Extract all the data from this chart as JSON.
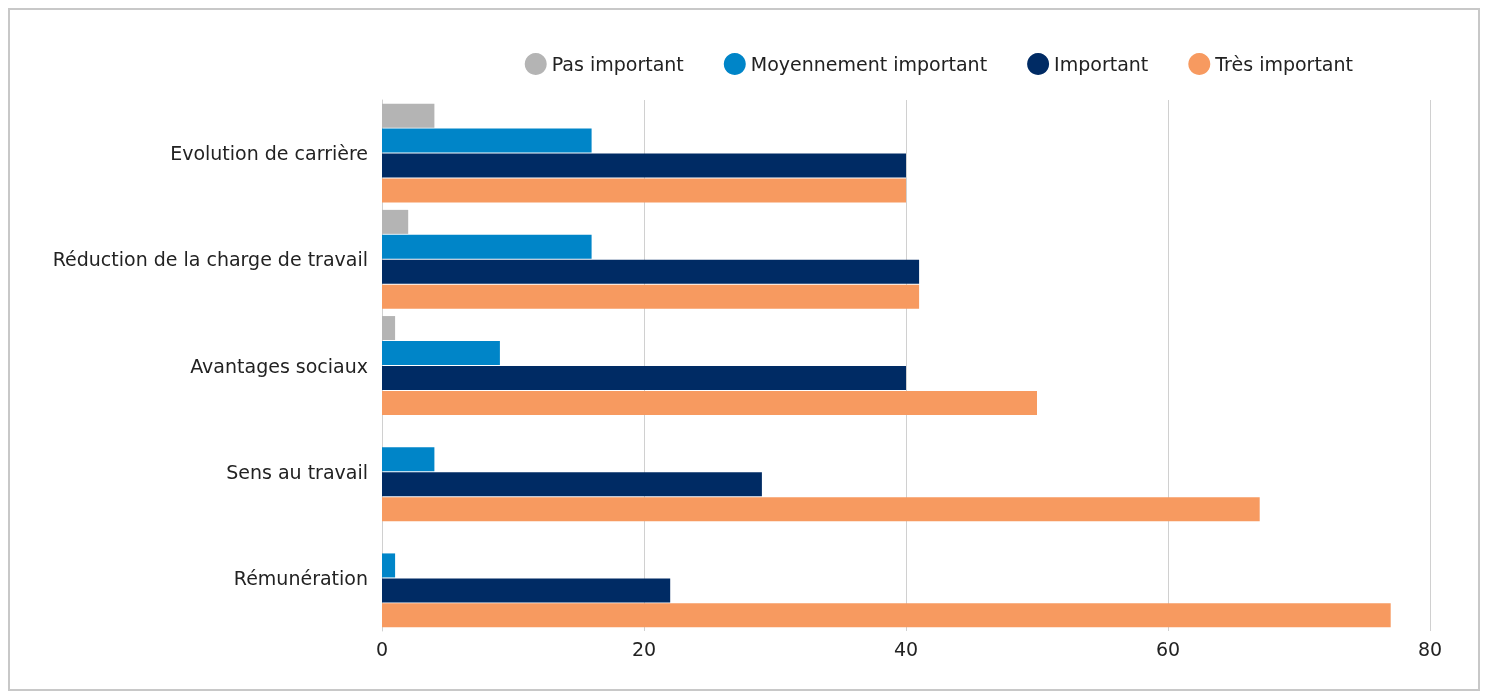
{
  "chart_data": {
    "type": "bar",
    "orientation": "horizontal",
    "categories": [
      "Evolution de carrière",
      "Réduction de la charge de travail",
      "Avantages sociaux",
      "Sens au travail",
      "Rémunération"
    ],
    "series": [
      {
        "name": "Pas important",
        "color": "#b4b4b4",
        "values": [
          4,
          2,
          1,
          0,
          0
        ]
      },
      {
        "name": "Moyennement important",
        "color": "#0085c8",
        "values": [
          16,
          16,
          9,
          4,
          1
        ]
      },
      {
        "name": "Important",
        "color": "#002b64",
        "values": [
          40,
          41,
          40,
          29,
          22
        ]
      },
      {
        "name": "Très important",
        "color": "#f79a60",
        "values": [
          40,
          41,
          50,
          67,
          77
        ]
      }
    ],
    "xlim": [
      0,
      80
    ],
    "xticks": [
      0,
      20,
      40,
      60,
      80
    ],
    "grid": "x",
    "legend": "top right"
  }
}
